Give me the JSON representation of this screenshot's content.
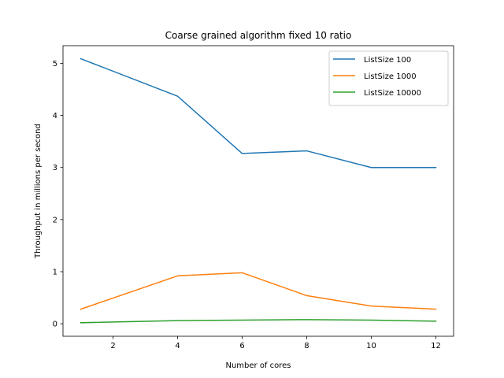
{
  "chart_data": {
    "type": "line",
    "title": "Coarse grained algorithm fixed 10 ratio",
    "xlabel": "Number of cores",
    "ylabel": "Throughput in millions per second",
    "x": [
      1,
      4,
      6,
      8,
      10,
      12
    ],
    "xticks": [
      2,
      4,
      6,
      8,
      10,
      12
    ],
    "yticks": [
      0,
      1,
      2,
      3,
      4,
      5
    ],
    "xlim": [
      0.45,
      12.55
    ],
    "ylim": [
      -0.24,
      5.34
    ],
    "grid": false,
    "legend_position": "top-right",
    "series": [
      {
        "name": "ListSize 100",
        "color": "#1f77b4",
        "values": [
          5.09,
          4.37,
          3.27,
          3.32,
          3.0,
          3.0
        ]
      },
      {
        "name": "ListSize 1000",
        "color": "#ff7f0e",
        "values": [
          0.28,
          0.92,
          0.98,
          0.54,
          0.34,
          0.28
        ]
      },
      {
        "name": "ListSize 10000",
        "color": "#2ca02c",
        "values": [
          0.02,
          0.06,
          0.07,
          0.08,
          0.07,
          0.05
        ]
      }
    ]
  }
}
